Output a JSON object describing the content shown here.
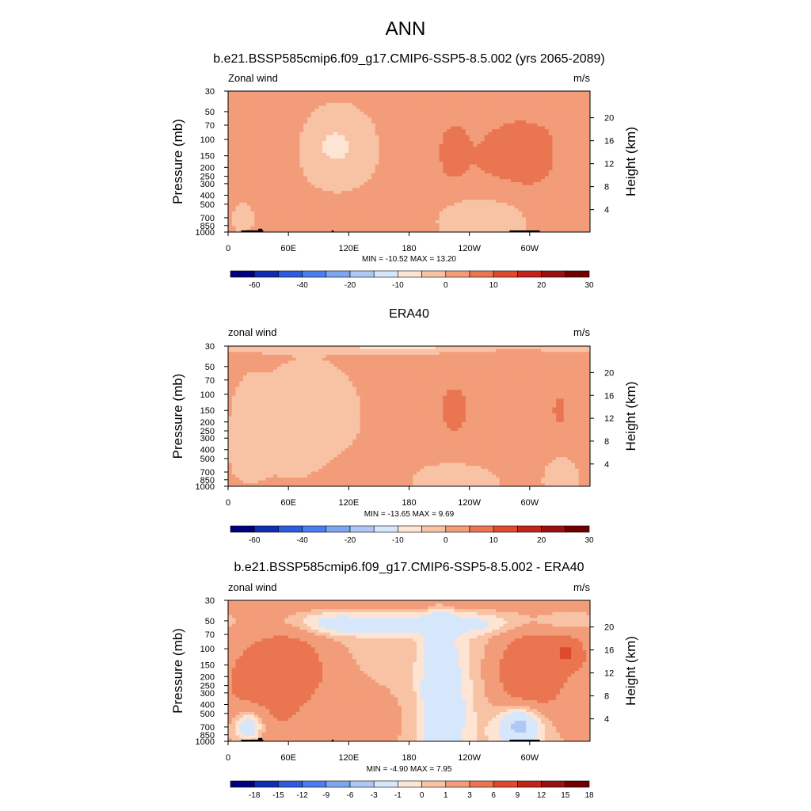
{
  "figure_title": "ANN",
  "colors": {
    "abs_scale": [
      "#00007f",
      "#0f2db0",
      "#2c5be0",
      "#4a7ef0",
      "#7da6f2",
      "#aec8f5",
      "#d6e6fb",
      "#fde4d3",
      "#f8c2a5",
      "#f29c79",
      "#ea7551",
      "#df4a2c",
      "#c32417",
      "#991010",
      "#6f0000"
    ],
    "diff_scale": [
      "#00007f",
      "#0f2db0",
      "#2c5be0",
      "#4a7ef0",
      "#7da6f2",
      "#aec8f5",
      "#d6e6fb",
      "#fde4d3",
      "#f8c2a5",
      "#f29c79",
      "#ea7551",
      "#df4a2c",
      "#c32417",
      "#991010",
      "#6f0000"
    ],
    "topography": "#000000"
  },
  "chart_data": [
    {
      "type": "heatmap",
      "title": "b.e21.BSSP585cmip6.f09_g17.CMIP6-SSP5-8.5.002 (yrs 2065-2089)",
      "left_label": "Zonal wind",
      "units_label": "m/s",
      "ylabel": "Pressure (mb)",
      "y2label": "Height (km)",
      "xticks": [
        "0",
        "60E",
        "120E",
        "180",
        "120W",
        "60W"
      ],
      "yticks": [
        "30",
        "50",
        "70",
        "100",
        "150",
        "200",
        "250",
        "300",
        "400",
        "500",
        "700",
        "850",
        "1000"
      ],
      "y2ticks": [
        "20",
        "16",
        "12",
        "8",
        "4"
      ],
      "xlim": [
        0,
        360
      ],
      "ylim": [
        1000,
        30
      ],
      "yscale": "log",
      "stats": "MIN = -10.52  MAX =  13.20",
      "min": -10.52,
      "max": 13.2,
      "colorbar_labels": [
        "-60",
        "-40",
        "-20",
        "-10",
        "0",
        "10",
        "20",
        "30"
      ],
      "topography": true,
      "features": [
        {
          "value": 13,
          "lon": 312,
          "p": 130,
          "lon_width": 18,
          "p_span": 0.45
        },
        {
          "value": 10,
          "lon": 295,
          "p": 150,
          "lon_width": 60,
          "p_span": 0.9
        },
        {
          "value": 10,
          "lon": 225,
          "p": 140,
          "lon_width": 35,
          "p_span": 0.8
        },
        {
          "value": 6,
          "lon": 275,
          "p": 160,
          "lon_width": 130,
          "p_span": 1.6
        },
        {
          "value": 3,
          "lon": 45,
          "p": 300,
          "lon_width": 40,
          "p_span": 1.4
        },
        {
          "value": 3,
          "lon": 5,
          "p": 160,
          "lon_width": 30,
          "p_span": 1.0
        },
        {
          "value": 3,
          "lon": 130,
          "p": 700,
          "lon_width": 130,
          "p_span": 0.8
        },
        {
          "value": 3,
          "lon": 340,
          "p": 900,
          "lon_width": 35,
          "p_span": 0.5
        },
        {
          "value": -5,
          "lon": 110,
          "p": 130,
          "lon_width": 75,
          "p_span": 1.1
        },
        {
          "value": -8,
          "lon": 105,
          "p": 115,
          "lon_width": 25,
          "p_span": 0.3
        },
        {
          "value": -3,
          "lon": 255,
          "p": 750,
          "lon_width": 110,
          "p_span": 0.8
        },
        {
          "value": -3,
          "lon": 15,
          "p": 700,
          "lon_width": 25,
          "p_span": 0.4
        }
      ]
    },
    {
      "type": "heatmap",
      "title": "ERA40",
      "left_label": "zonal wind",
      "units_label": "m/s",
      "ylabel": "Pressure (mb)",
      "y2label": "Height (km)",
      "xticks": [
        "0",
        "60E",
        "120E",
        "180",
        "120W",
        "60W"
      ],
      "yticks": [
        "30",
        "50",
        "70",
        "100",
        "150",
        "200",
        "250",
        "300",
        "400",
        "500",
        "700",
        "850",
        "1000"
      ],
      "y2ticks": [
        "20",
        "16",
        "12",
        "8",
        "4"
      ],
      "xlim": [
        0,
        360
      ],
      "ylim": [
        1000,
        30
      ],
      "yscale": "log",
      "stats": "MIN = -13.65  MAX =   9.69",
      "min": -13.65,
      "max": 9.69,
      "colorbar_labels": [
        "-60",
        "-40",
        "-20",
        "-10",
        "0",
        "10",
        "20",
        "30"
      ],
      "topography": false,
      "features": [
        {
          "value": -6,
          "lon": 180,
          "p": 30,
          "lon_width": 400,
          "p_span": 0.18
        },
        {
          "value": 8,
          "lon": 225,
          "p": 145,
          "lon_width": 40,
          "p_span": 0.8
        },
        {
          "value": 8,
          "lon": 330,
          "p": 150,
          "lon_width": 18,
          "p_span": 0.5
        },
        {
          "value": 5,
          "lon": 275,
          "p": 160,
          "lon_width": 120,
          "p_span": 1.7
        },
        {
          "value": 3,
          "lon": 110,
          "p": 650,
          "lon_width": 75,
          "p_span": 0.8
        },
        {
          "value": 3,
          "lon": 20,
          "p": 950,
          "lon_width": 30,
          "p_span": 0.3
        },
        {
          "value": -6,
          "lon": 90,
          "p": 160,
          "lon_width": 60,
          "p_span": 0.9
        },
        {
          "value": -3,
          "lon": 75,
          "p": 200,
          "lon_width": 110,
          "p_span": 1.6
        },
        {
          "value": -3,
          "lon": 20,
          "p": 300,
          "lon_width": 40,
          "p_span": 1.5
        },
        {
          "value": -3,
          "lon": 230,
          "p": 850,
          "lon_width": 100,
          "p_span": 0.5
        },
        {
          "value": -3,
          "lon": 330,
          "p": 800,
          "lon_width": 40,
          "p_span": 0.6
        }
      ]
    },
    {
      "type": "heatmap",
      "title": "b.e21.BSSP585cmip6.f09_g17.CMIP6-SSP5-8.5.002 - ERA40",
      "left_label": "zonal wind",
      "units_label": "m/s",
      "ylabel": "Pressure (mb)",
      "y2label": "Height (km)",
      "xticks": [
        "0",
        "60E",
        "120E",
        "180",
        "120W",
        "60W"
      ],
      "yticks": [
        "30",
        "50",
        "70",
        "100",
        "150",
        "200",
        "250",
        "300",
        "400",
        "500",
        "700",
        "850",
        "1000"
      ],
      "y2ticks": [
        "20",
        "16",
        "12",
        "8",
        "4"
      ],
      "xlim": [
        0,
        360
      ],
      "ylim": [
        1000,
        30
      ],
      "yscale": "log",
      "stats": "MIN =  -4.90  MAX =   7.95",
      "min": -4.9,
      "max": 7.95,
      "colorbar_labels": [
        "-18",
        "-15",
        "-12",
        "-9",
        "-6",
        "-3",
        "-1",
        "0",
        "1",
        "3",
        "6",
        "9",
        "12",
        "15",
        "18"
      ],
      "topography": true,
      "features": [
        {
          "value": 3,
          "lon": 180,
          "p": 32,
          "lon_width": 420,
          "p_span": 0.22
        },
        {
          "value": -2,
          "lon": 180,
          "p": 55,
          "lon_width": 420,
          "p_span": 0.3
        },
        {
          "value": -3,
          "lon": 90,
          "p": 55,
          "lon_width": 90,
          "p_span": 0.3
        },
        {
          "value": 7.5,
          "lon": 65,
          "p": 190,
          "lon_width": 40,
          "p_span": 0.55
        },
        {
          "value": 6,
          "lon": 60,
          "p": 220,
          "lon_width": 80,
          "p_span": 1.2
        },
        {
          "value": 4,
          "lon": 40,
          "p": 250,
          "lon_width": 140,
          "p_span": 2.0
        },
        {
          "value": 7,
          "lon": 335,
          "p": 110,
          "lon_width": 35,
          "p_span": 0.45
        },
        {
          "value": 6,
          "lon": 300,
          "p": 180,
          "lon_width": 80,
          "p_span": 1.3
        },
        {
          "value": 2,
          "lon": 120,
          "p": 600,
          "lon_width": 140,
          "p_span": 1.2
        },
        {
          "value": -4,
          "lon": 210,
          "p": 200,
          "lon_width": 30,
          "p_span": 1.7
        },
        {
          "value": -2.5,
          "lon": 215,
          "p": 500,
          "lon_width": 55,
          "p_span": 2.2
        },
        {
          "value": -3.5,
          "lon": 290,
          "p": 700,
          "lon_width": 55,
          "p_span": 0.6
        },
        {
          "value": -2,
          "lon": 20,
          "p": 700,
          "lon_width": 40,
          "p_span": 0.5
        }
      ]
    }
  ]
}
